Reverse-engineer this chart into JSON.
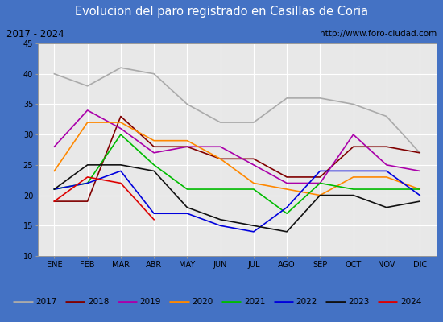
{
  "title": "Evolucion del paro registrado en Casillas de Coria",
  "subtitle_left": "2017 - 2024",
  "subtitle_right": "http://www.foro-ciudad.com",
  "months": [
    "ENE",
    "FEB",
    "MAR",
    "ABR",
    "MAY",
    "JUN",
    "JUL",
    "AGO",
    "SEP",
    "OCT",
    "NOV",
    "DIC"
  ],
  "ylim": [
    10,
    45
  ],
  "yticks": [
    10,
    15,
    20,
    25,
    30,
    35,
    40,
    45
  ],
  "series": {
    "2017": {
      "color": "#aaaaaa",
      "data": [
        40,
        38,
        41,
        40,
        35,
        32,
        32,
        36,
        36,
        35,
        33,
        27
      ]
    },
    "2018": {
      "color": "#800000",
      "data": [
        19,
        19,
        33,
        28,
        28,
        26,
        26,
        23,
        23,
        28,
        28,
        27
      ]
    },
    "2019": {
      "color": "#aa00aa",
      "data": [
        28,
        34,
        31,
        27,
        28,
        28,
        25,
        22,
        22,
        30,
        25,
        24
      ]
    },
    "2020": {
      "color": "#ff8800",
      "data": [
        24,
        32,
        32,
        29,
        29,
        26,
        22,
        21,
        20,
        23,
        23,
        21
      ]
    },
    "2021": {
      "color": "#00bb00",
      "data": [
        21,
        22,
        30,
        25,
        21,
        21,
        21,
        17,
        22,
        21,
        21,
        21
      ]
    },
    "2022": {
      "color": "#0000dd",
      "data": [
        21,
        22,
        24,
        17,
        17,
        15,
        14,
        18,
        24,
        24,
        24,
        20
      ]
    },
    "2023": {
      "color": "#111111",
      "data": [
        21,
        25,
        25,
        24,
        18,
        16,
        15,
        14,
        20,
        20,
        18,
        19
      ]
    },
    "2024": {
      "color": "#dd0000",
      "data": [
        19,
        23,
        22,
        16,
        null,
        null,
        null,
        null,
        null,
        null,
        null,
        null
      ]
    }
  },
  "title_bg_color": "#4472c4",
  "title_text_color": "#ffffff",
  "subtitle_bg_color": "#dddddd",
  "plot_bg_color": "#e8e8e8",
  "grid_color": "#ffffff",
  "legend_bg_color": "#f0f0f0",
  "legend_border_color": "#999999",
  "fig_bg_color": "#4472c4"
}
